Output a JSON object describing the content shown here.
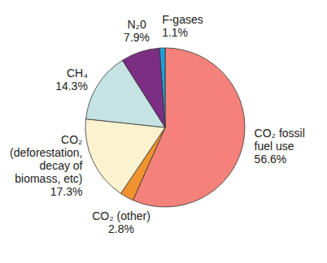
{
  "chart_data": {
    "type": "pie",
    "categories": [
      "CO₂ fossil\nfuel use",
      "CO₂ (other)",
      "CO₂\n(deforestation,\ndecay of\nbiomass, etc)",
      "CH₄",
      "N₂0",
      "F-gases"
    ],
    "values": [
      56.6,
      2.8,
      17.3,
      14.3,
      7.9,
      1.1
    ],
    "value_labels": [
      "56.6%",
      "2.8%",
      "17.3%",
      "14.3%",
      "7.9%",
      "1.1%"
    ],
    "colors": [
      "#f4827a",
      "#f0922e",
      "#fbf2cf",
      "#c5e3e2",
      "#7b2e83",
      "#1ba0d8"
    ],
    "data_labels": true
  }
}
